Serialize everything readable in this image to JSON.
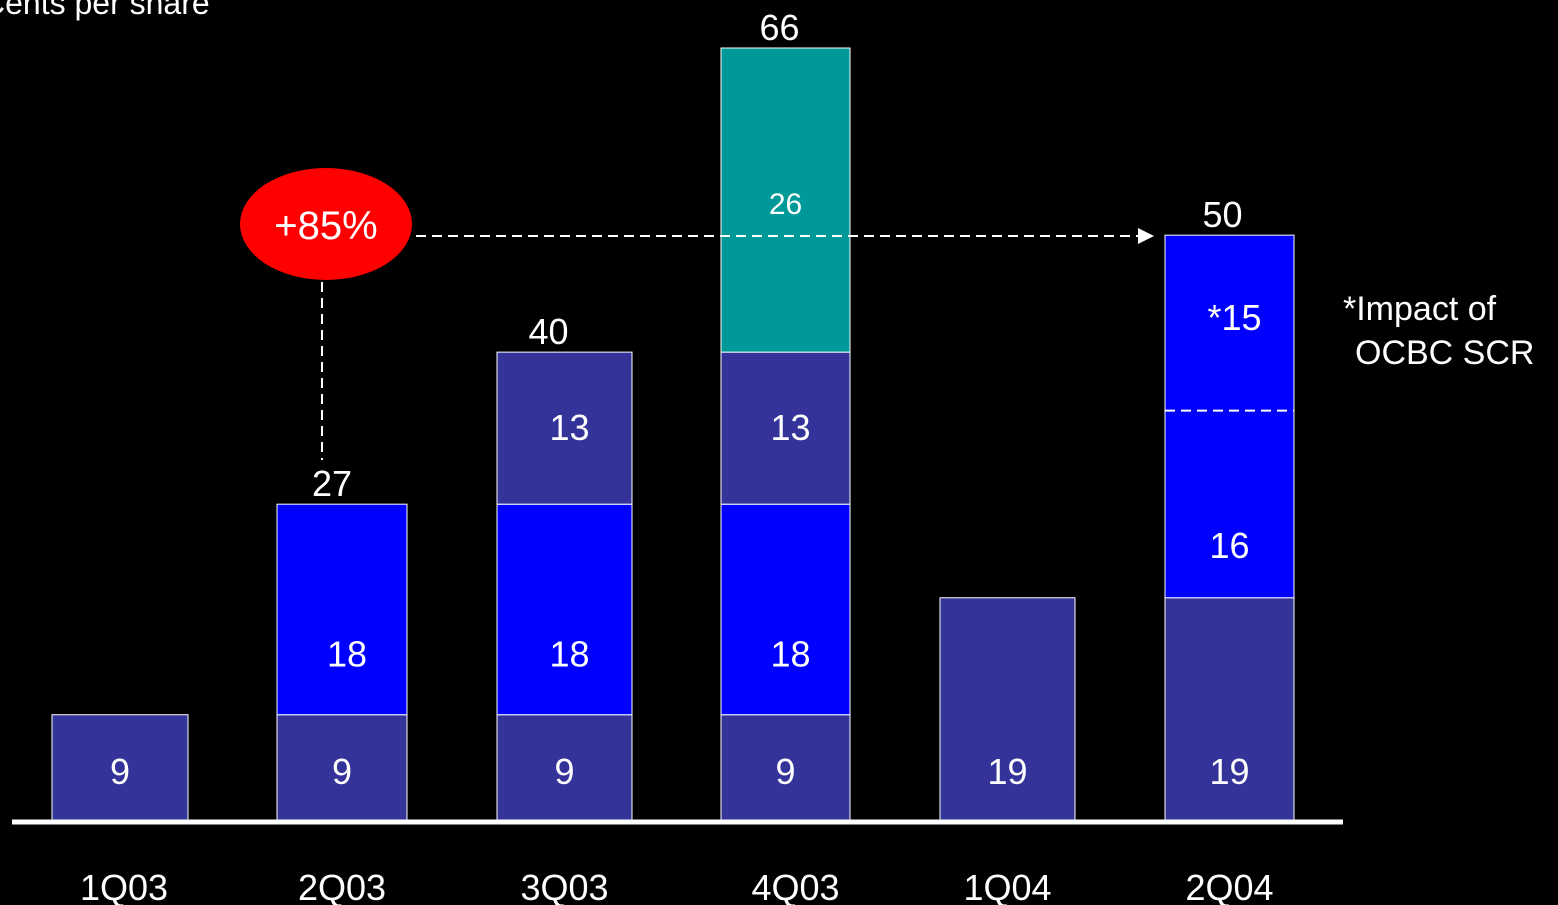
{
  "chart_data": {
    "type": "bar",
    "stacked": true,
    "title": "",
    "ylabel": "Cents per share",
    "xlabel": "",
    "categories": [
      "1Q03",
      "2Q03",
      "3Q03",
      "4Q03",
      "1Q04",
      "2Q04"
    ],
    "stacks": [
      {
        "category": "1Q03",
        "total": null,
        "segments": [
          {
            "value": 9,
            "label": "9",
            "color": "#333399"
          }
        ]
      },
      {
        "category": "2Q03",
        "total": "27",
        "segments": [
          {
            "value": 9,
            "label": "9",
            "color": "#333399"
          },
          {
            "value": 18,
            "label": "18",
            "color": "#0000ff"
          }
        ]
      },
      {
        "category": "3Q03",
        "total": "40",
        "segments": [
          {
            "value": 9,
            "label": "9",
            "color": "#333399"
          },
          {
            "value": 18,
            "label": "18",
            "color": "#0000ff"
          },
          {
            "value": 13,
            "label": "13",
            "color": "#333399"
          }
        ]
      },
      {
        "category": "4Q03",
        "total": "66",
        "segments": [
          {
            "value": 9,
            "label": "9",
            "color": "#333399"
          },
          {
            "value": 18,
            "label": "18",
            "color": "#0000ff"
          },
          {
            "value": 13,
            "label": "13",
            "color": "#333399"
          },
          {
            "value": 26,
            "label": "26",
            "color": "#009999"
          }
        ]
      },
      {
        "category": "1Q04",
        "total": null,
        "segments": [
          {
            "value": 19,
            "label": "19",
            "color": "#333399"
          }
        ]
      },
      {
        "category": "2Q04",
        "total": "50",
        "segments": [
          {
            "value": 19,
            "label": "19",
            "color": "#333399"
          },
          {
            "value": 16,
            "label": "16",
            "color": "#0000ff"
          },
          {
            "value": 15,
            "label": "*15",
            "color": "#0000ff",
            "dashed_separator_below": true
          }
        ]
      }
    ],
    "annotations": {
      "growth": "+85%",
      "growth_color": "#ff0000",
      "growth_from": "2Q03",
      "growth_to": "2Q04",
      "footnote_line1": "*Impact of",
      "footnote_line2": "OCBC SCR"
    },
    "ylim": [
      0,
      66
    ],
    "grid": false,
    "colors": {
      "background": "#000000",
      "base": "#333399",
      "blue": "#0000ff",
      "teal": "#009999",
      "text": "#ffffff"
    }
  }
}
